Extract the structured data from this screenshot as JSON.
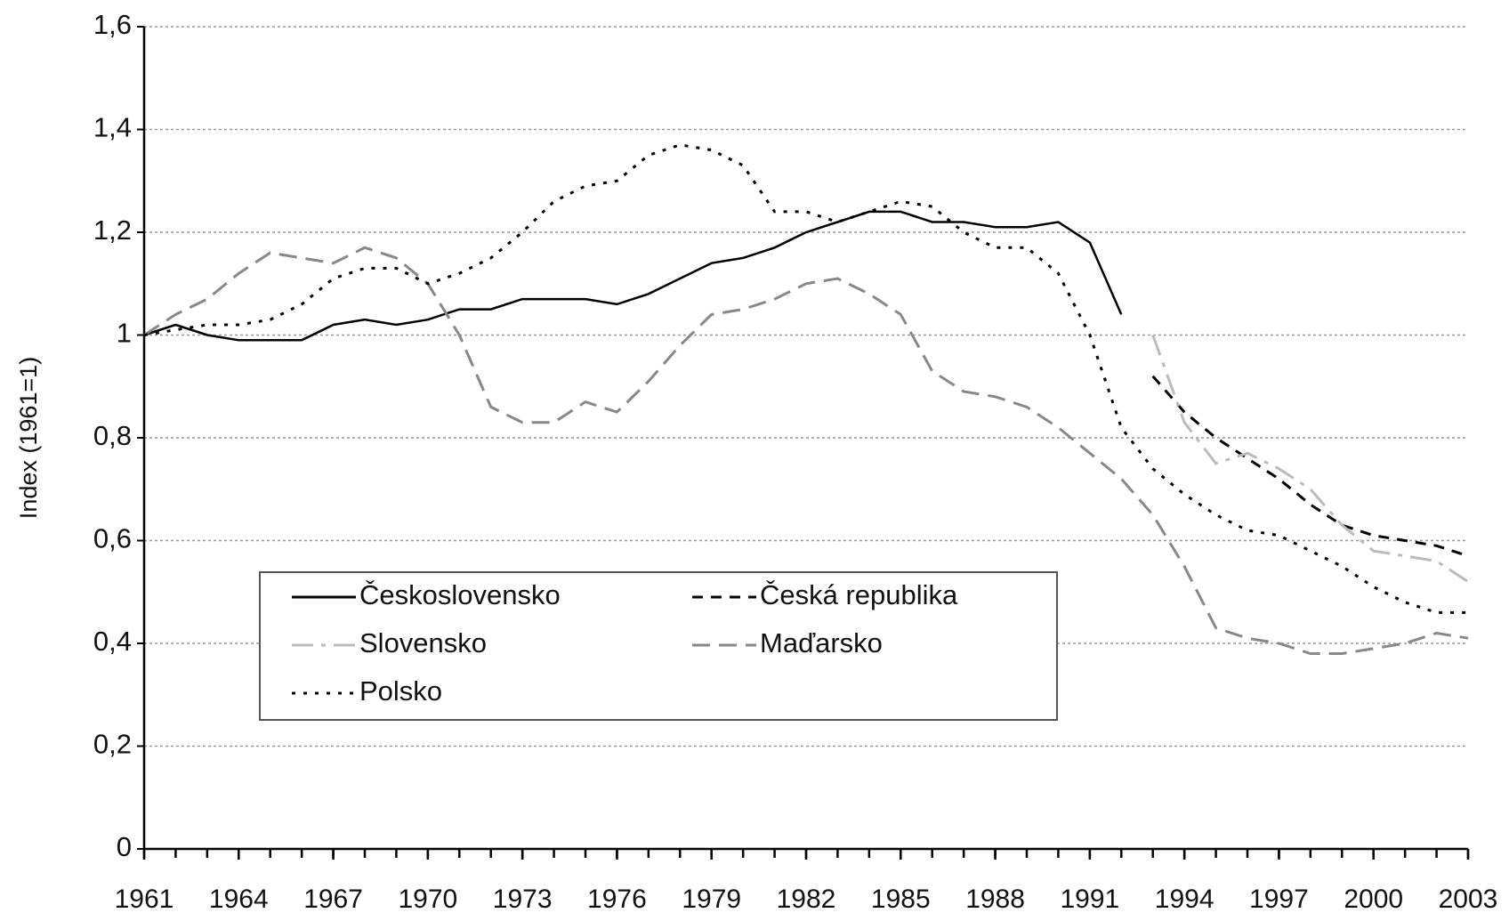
{
  "chart_data": {
    "type": "line",
    "y_label": "Index (1961=1)",
    "x": [
      1961,
      1962,
      1963,
      1964,
      1965,
      1966,
      1967,
      1968,
      1969,
      1970,
      1971,
      1972,
      1973,
      1974,
      1975,
      1976,
      1977,
      1978,
      1979,
      1980,
      1981,
      1982,
      1983,
      1984,
      1985,
      1986,
      1987,
      1988,
      1989,
      1990,
      1991,
      1992,
      1993,
      1994,
      1995,
      1996,
      1997,
      1998,
      1999,
      2000,
      2001,
      2002,
      2003
    ],
    "xlim": [
      1961,
      2003
    ],
    "xticks": [
      1961,
      1964,
      1967,
      1970,
      1973,
      1976,
      1979,
      1982,
      1985,
      1988,
      1991,
      1994,
      1997,
      2000,
      2003
    ],
    "ylim": [
      0,
      1.6
    ],
    "yticks": [
      0,
      {
        "value": 0.2,
        "label": "0,2"
      },
      {
        "value": 0.4,
        "label": "0,4"
      },
      {
        "value": 0.6,
        "label": "0,6"
      },
      {
        "value": 0.8,
        "label": "0,8"
      },
      1,
      {
        "value": 1.2,
        "label": "1,2"
      },
      {
        "value": 1.4,
        "label": "1,4"
      },
      {
        "value": 1.6,
        "label": "1,6"
      }
    ],
    "grid": true,
    "series": [
      {
        "name": "Československo",
        "color": "#000000",
        "dash": "solid",
        "values": [
          1.0,
          1.02,
          1.0,
          0.99,
          0.99,
          0.99,
          1.02,
          1.03,
          1.02,
          1.03,
          1.05,
          1.05,
          1.07,
          1.07,
          1.07,
          1.06,
          1.08,
          1.11,
          1.14,
          1.15,
          1.17,
          1.2,
          1.22,
          1.24,
          1.24,
          1.22,
          1.22,
          1.21,
          1.21,
          1.22,
          1.18,
          1.04,
          null,
          null,
          null,
          null,
          null,
          null,
          null,
          null,
          null,
          null,
          null
        ]
      },
      {
        "name": "Česká republika",
        "color": "#000000",
        "dash": "dashed",
        "values": [
          null,
          null,
          null,
          null,
          null,
          null,
          null,
          null,
          null,
          null,
          null,
          null,
          null,
          null,
          null,
          null,
          null,
          null,
          null,
          null,
          null,
          null,
          null,
          null,
          null,
          null,
          null,
          null,
          null,
          null,
          null,
          null,
          0.92,
          0.85,
          0.8,
          0.76,
          0.72,
          0.67,
          0.63,
          0.61,
          0.6,
          0.59,
          0.57
        ]
      },
      {
        "name": "Slovensko",
        "color": "#bbbbbb",
        "dash": "dashdot",
        "values": [
          null,
          null,
          null,
          null,
          null,
          null,
          null,
          null,
          null,
          null,
          null,
          null,
          null,
          null,
          null,
          null,
          null,
          null,
          null,
          null,
          null,
          null,
          null,
          null,
          null,
          null,
          null,
          null,
          null,
          null,
          null,
          null,
          1.0,
          0.83,
          0.75,
          0.77,
          0.74,
          0.7,
          0.63,
          0.58,
          0.57,
          0.56,
          0.52
        ]
      },
      {
        "name": "Maďarsko",
        "color": "#888888",
        "dash": "longdash",
        "values": [
          1.0,
          1.04,
          1.07,
          1.12,
          1.16,
          1.15,
          1.14,
          1.17,
          1.15,
          1.1,
          1.0,
          0.86,
          0.83,
          0.83,
          0.87,
          0.85,
          0.91,
          0.98,
          1.04,
          1.05,
          1.07,
          1.1,
          1.11,
          1.08,
          1.04,
          0.93,
          0.89,
          0.88,
          0.86,
          0.82,
          0.77,
          0.72,
          0.65,
          0.55,
          0.43,
          0.41,
          0.4,
          0.38,
          0.38,
          0.39,
          0.4,
          0.42,
          0.41
        ]
      },
      {
        "name": "Polsko",
        "color": "#000000",
        "dash": "dotted",
        "values": [
          1.0,
          1.01,
          1.02,
          1.02,
          1.03,
          1.06,
          1.11,
          1.13,
          1.13,
          1.1,
          1.12,
          1.15,
          1.2,
          1.26,
          1.29,
          1.3,
          1.35,
          1.37,
          1.36,
          1.33,
          1.24,
          1.24,
          1.22,
          1.24,
          1.26,
          1.25,
          1.2,
          1.17,
          1.17,
          1.12,
          1.0,
          0.82,
          0.74,
          0.69,
          0.65,
          0.62,
          0.61,
          0.58,
          0.55,
          0.51,
          0.48,
          0.46,
          0.46
        ]
      }
    ]
  }
}
